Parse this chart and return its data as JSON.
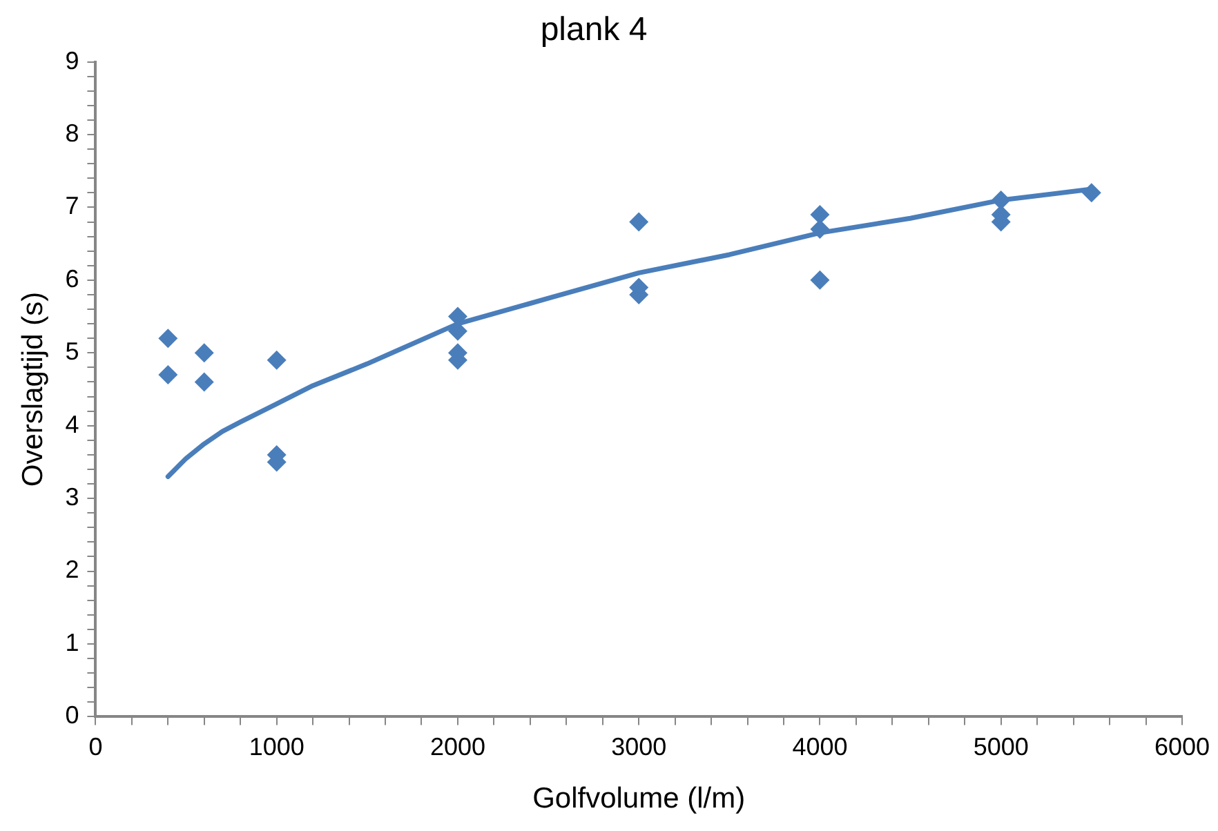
{
  "chart_data": {
    "type": "scatter",
    "title": "plank 4",
    "xlabel": "Golfvolume (l/m)",
    "ylabel": "Overslagtijd (s)",
    "series": [
      {
        "type": "scatter",
        "color": "#4a7ebb",
        "marker": "diamond",
        "x": [
          400,
          400,
          600,
          600,
          1000,
          1000,
          1000,
          2000,
          2000,
          2000,
          2000,
          3000,
          3000,
          3000,
          4000,
          4000,
          4000,
          5000,
          5000,
          5000,
          5500
        ],
        "values": [
          5.2,
          4.7,
          5.0,
          4.6,
          4.9,
          3.6,
          3.5,
          5.5,
          5.3,
          5.0,
          4.9,
          6.8,
          5.9,
          5.8,
          6.9,
          6.7,
          6.0,
          7.1,
          6.9,
          6.8,
          7.2
        ]
      },
      {
        "type": "line",
        "color": "#4a7ebb",
        "marker": "none",
        "x": [
          400,
          500,
          600,
          700,
          800,
          1000,
          1200,
          1500,
          2000,
          2500,
          3000,
          3500,
          4000,
          4500,
          5000,
          5500
        ],
        "values": [
          3.3,
          3.55,
          3.75,
          3.92,
          4.05,
          4.3,
          4.55,
          4.85,
          5.4,
          5.75,
          6.1,
          6.35,
          6.65,
          6.85,
          7.1,
          7.25
        ]
      }
    ],
    "xlim": [
      0,
      6000
    ],
    "xticks": [
      0,
      {
        "value": 200,
        "label": null
      },
      {
        "value": 400,
        "label": null
      },
      {
        "value": 600,
        "label": null
      },
      {
        "value": 800,
        "label": null
      },
      1000,
      {
        "value": 1200,
        "label": null
      },
      {
        "value": 1400,
        "label": null
      },
      {
        "value": 1600,
        "label": null
      },
      {
        "value": 1800,
        "label": null
      },
      2000,
      {
        "value": 2200,
        "label": null
      },
      {
        "value": 2400,
        "label": null
      },
      {
        "value": 2600,
        "label": null
      },
      {
        "value": 2800,
        "label": null
      },
      3000,
      {
        "value": 3200,
        "label": null
      },
      {
        "value": 3400,
        "label": null
      },
      {
        "value": 3600,
        "label": null
      },
      {
        "value": 3800,
        "label": null
      },
      4000,
      {
        "value": 4200,
        "label": null
      },
      {
        "value": 4400,
        "label": null
      },
      {
        "value": 4600,
        "label": null
      },
      {
        "value": 4800,
        "label": null
      },
      5000,
      {
        "value": 5200,
        "label": null
      },
      {
        "value": 5400,
        "label": null
      },
      {
        "value": 5600,
        "label": null
      },
      {
        "value": 5800,
        "label": null
      },
      6000
    ],
    "ylim": [
      0,
      9
    ],
    "yticks": [
      0,
      {
        "value": 0.2,
        "label": null
      },
      {
        "value": 0.4,
        "label": null
      },
      {
        "value": 0.6,
        "label": null
      },
      {
        "value": 0.8,
        "label": null
      },
      1,
      {
        "value": 1.2,
        "label": null
      },
      {
        "value": 1.4,
        "label": null
      },
      {
        "value": 1.6,
        "label": null
      },
      {
        "value": 1.8,
        "label": null
      },
      2,
      {
        "value": 2.2,
        "label": null
      },
      {
        "value": 2.4,
        "label": null
      },
      {
        "value": 2.6,
        "label": null
      },
      {
        "value": 2.8,
        "label": null
      },
      3,
      {
        "value": 3.2,
        "label": null
      },
      {
        "value": 3.4,
        "label": null
      },
      {
        "value": 3.6,
        "label": null
      },
      {
        "value": 3.8,
        "label": null
      },
      4,
      {
        "value": 4.2,
        "label": null
      },
      {
        "value": 4.4,
        "label": null
      },
      {
        "value": 4.6,
        "label": null
      },
      {
        "value": 4.8,
        "label": null
      },
      5,
      {
        "value": 5.2,
        "label": null
      },
      {
        "value": 5.4,
        "label": null
      },
      {
        "value": 5.6,
        "label": null
      },
      {
        "value": 5.8,
        "label": null
      },
      6,
      {
        "value": 6.2,
        "label": null
      },
      {
        "value": 6.4,
        "label": null
      },
      {
        "value": 6.6,
        "label": null
      },
      {
        "value": 6.8,
        "label": null
      },
      7,
      {
        "value": 7.2,
        "label": null
      },
      {
        "value": 7.4,
        "label": null
      },
      {
        "value": 7.6,
        "label": null
      },
      {
        "value": 7.8,
        "label": null
      },
      8,
      {
        "value": 8.2,
        "label": null
      },
      {
        "value": 8.4,
        "label": null
      },
      {
        "value": 8.6,
        "label": null
      },
      {
        "value": 8.8,
        "label": null
      },
      9
    ],
    "grid": false,
    "legend": false
  }
}
